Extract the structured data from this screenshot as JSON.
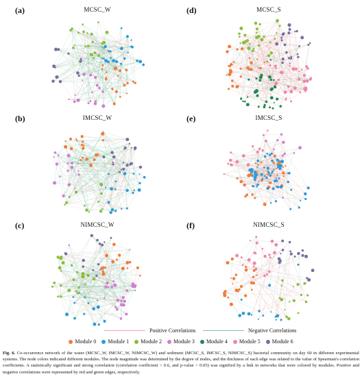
{
  "panels": [
    {
      "letter": "(a)",
      "title": "MCSC_W",
      "kind": "water",
      "modules": [
        0,
        3,
        6,
        2,
        1
      ]
    },
    {
      "letter": "(d)",
      "title": "MCSC_S",
      "kind": "sediment",
      "modules": [
        5,
        4,
        0,
        2,
        6
      ]
    },
    {
      "letter": "(b)",
      "title": "IMCSC_W",
      "kind": "water",
      "modules": [
        1,
        2,
        3,
        0,
        6
      ]
    },
    {
      "letter": "(e)",
      "title": "IMCSC_S",
      "kind": "dense",
      "modules": [
        1,
        0,
        5,
        3
      ]
    },
    {
      "letter": "(c)",
      "title": "NIMCSC_W",
      "kind": "water",
      "modules": [
        3,
        1,
        2,
        6,
        0
      ]
    },
    {
      "letter": "(f)",
      "title": "NIMCSC_S",
      "kind": "sparse",
      "modules": [
        2,
        1,
        0,
        5,
        6
      ]
    }
  ],
  "correlations": {
    "positive_label": "Positive Correlations",
    "negative_label": "Negative Correlations",
    "positive_color": "#f0a3a8",
    "negative_color": "#7fc3a4"
  },
  "modules": [
    {
      "label": "Module 0",
      "color": "#ee7d3b"
    },
    {
      "label": "Module 1",
      "color": "#2d9bd8"
    },
    {
      "label": "Module 2",
      "color": "#8cbd3f"
    },
    {
      "label": "Module 3",
      "color": "#cf7fd0"
    },
    {
      "label": "Module 4",
      "color": "#1e8a52"
    },
    {
      "label": "Module 5",
      "color": "#ef86a8"
    },
    {
      "label": "Module 6",
      "color": "#7a6e9e"
    }
  ],
  "caption": {
    "label": "Fig. 6.",
    "text": "Co-occurrence network of the water (MCSC_W, IMCSC_W, NIMCSC_W) and sediment (MCSC_S, IMCSC_S, NIMCSC_S) bacterial community on day 60 in different experimental systems. The node colors indicated different modules. The node magnitude was determined by the degree of nodes, and the thickness of each edge was related to the value of Spearman's correlation coefficients. A statistically significant and strong correlation (correlation coefficient > 0.6, and p-value < 0.05) was signified by a link in networks that were colored by modules. Positive and negative correlations were represented by red and green edges, respectively."
  }
}
